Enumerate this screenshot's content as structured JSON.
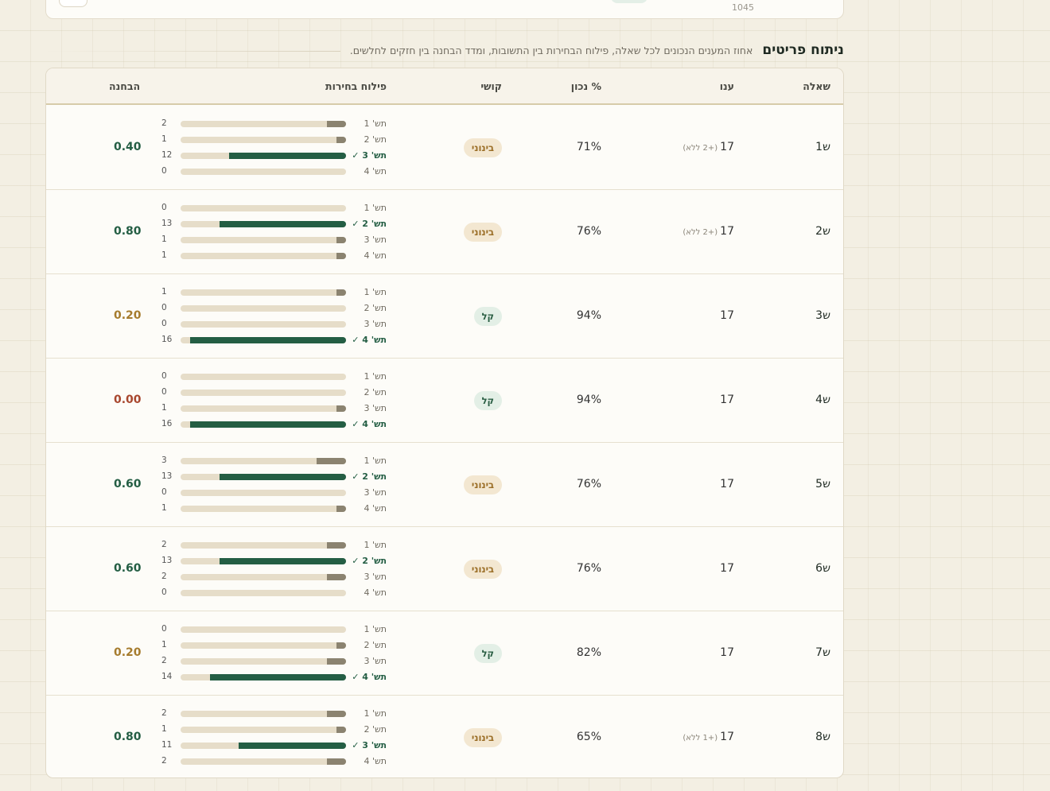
{
  "top": {
    "stub_number": "1045"
  },
  "section": {
    "title": "ניתוח פריטים",
    "subtitle": "אחוז המענים הנכונים לכל שאלה, פילוח הבחירות בין התשובות, ומדד הבחנה בין חזקים לחלשים."
  },
  "table": {
    "headers": {
      "question": "שאלה",
      "answered": "ענו",
      "percent_correct": "% נכון",
      "difficulty": "קושי",
      "distribution": "פילוח בחירות",
      "discrimination": "הבחנה"
    },
    "total_students": 17,
    "rows": [
      {
        "q": "ש1",
        "answered": "17",
        "extra": "(+2 ללא)",
        "pct": "71%",
        "difficulty": "בינוני",
        "diff_level": "med",
        "disc": "0.40",
        "disc_level": "good",
        "correct": 3,
        "options": [
          {
            "label": "תש' 1",
            "count": 2
          },
          {
            "label": "תש' 2",
            "count": 1
          },
          {
            "label": "תש' 3",
            "count": 12
          },
          {
            "label": "תש' 4",
            "count": 0
          }
        ]
      },
      {
        "q": "ש2",
        "answered": "17",
        "extra": "(+2 ללא)",
        "pct": "76%",
        "difficulty": "בינוני",
        "diff_level": "med",
        "disc": "0.80",
        "disc_level": "good",
        "correct": 2,
        "options": [
          {
            "label": "תש' 1",
            "count": 0
          },
          {
            "label": "תש' 2",
            "count": 13
          },
          {
            "label": "תש' 3",
            "count": 1
          },
          {
            "label": "תש' 4",
            "count": 1
          }
        ]
      },
      {
        "q": "ש3",
        "answered": "17",
        "extra": "",
        "pct": "94%",
        "difficulty": "קל",
        "diff_level": "easy",
        "disc": "0.20",
        "disc_level": "fair",
        "correct": 4,
        "options": [
          {
            "label": "תש' 1",
            "count": 1
          },
          {
            "label": "תש' 2",
            "count": 0
          },
          {
            "label": "תש' 3",
            "count": 0
          },
          {
            "label": "תש' 4",
            "count": 16
          }
        ]
      },
      {
        "q": "ש4",
        "answered": "17",
        "extra": "",
        "pct": "94%",
        "difficulty": "קל",
        "diff_level": "easy",
        "disc": "0.00",
        "disc_level": "poor",
        "correct": 4,
        "options": [
          {
            "label": "תש' 1",
            "count": 0
          },
          {
            "label": "תש' 2",
            "count": 0
          },
          {
            "label": "תש' 3",
            "count": 1
          },
          {
            "label": "תש' 4",
            "count": 16
          }
        ]
      },
      {
        "q": "ש5",
        "answered": "17",
        "extra": "",
        "pct": "76%",
        "difficulty": "בינוני",
        "diff_level": "med",
        "disc": "0.60",
        "disc_level": "good",
        "correct": 2,
        "options": [
          {
            "label": "תש' 1",
            "count": 3
          },
          {
            "label": "תש' 2",
            "count": 13
          },
          {
            "label": "תש' 3",
            "count": 0
          },
          {
            "label": "תש' 4",
            "count": 1
          }
        ]
      },
      {
        "q": "ש6",
        "answered": "17",
        "extra": "",
        "pct": "76%",
        "difficulty": "בינוני",
        "diff_level": "med",
        "disc": "0.60",
        "disc_level": "good",
        "correct": 2,
        "options": [
          {
            "label": "תש' 1",
            "count": 2
          },
          {
            "label": "תש' 2",
            "count": 13
          },
          {
            "label": "תש' 3",
            "count": 2
          },
          {
            "label": "תש' 4",
            "count": 0
          }
        ]
      },
      {
        "q": "ש7",
        "answered": "17",
        "extra": "",
        "pct": "82%",
        "difficulty": "קל",
        "diff_level": "easy",
        "disc": "0.20",
        "disc_level": "fair",
        "correct": 4,
        "options": [
          {
            "label": "תש' 1",
            "count": 0
          },
          {
            "label": "תש' 2",
            "count": 1
          },
          {
            "label": "תש' 3",
            "count": 2
          },
          {
            "label": "תש' 4",
            "count": 14
          }
        ]
      },
      {
        "q": "ש8",
        "answered": "17",
        "extra": "(+1 ללא)",
        "pct": "65%",
        "difficulty": "בינוני",
        "diff_level": "med",
        "disc": "0.80",
        "disc_level": "good",
        "correct": 3,
        "options": [
          {
            "label": "תש' 1",
            "count": 2
          },
          {
            "label": "תש' 2",
            "count": 1
          },
          {
            "label": "תש' 3",
            "count": 11
          },
          {
            "label": "תש' 4",
            "count": 2
          }
        ]
      }
    ]
  },
  "colors": {
    "correct_bar": "#245e44",
    "other_bar": "#8b8370",
    "track": "#e6ddc9",
    "disc_good": "#245e44",
    "disc_fair": "#a67c2e",
    "disc_poor": "#a8472e"
  },
  "icons": {
    "correct_mark": "checkmark-icon"
  }
}
